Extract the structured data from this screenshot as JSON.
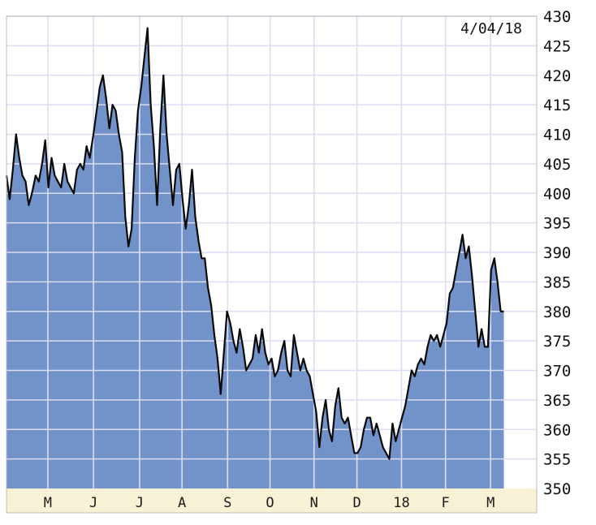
{
  "chart_data": {
    "type": "area",
    "date_label": "4/04/18",
    "ylim": [
      350,
      430
    ],
    "y_ticks": [
      350,
      355,
      360,
      365,
      370,
      375,
      380,
      385,
      390,
      395,
      400,
      405,
      410,
      415,
      420,
      425,
      430
    ],
    "x_ticks": [
      "M",
      "J",
      "J",
      "A",
      "S",
      "O",
      "N",
      "D",
      "18",
      "F",
      "M"
    ],
    "x_range": [
      0,
      1
    ],
    "x_tick_positions": [
      0.078,
      0.164,
      0.251,
      0.331,
      0.417,
      0.497,
      0.58,
      0.661,
      0.745,
      0.828,
      0.913
    ],
    "values": [
      [
        0.0,
        403
      ],
      [
        0.006,
        399
      ],
      [
        0.012,
        404
      ],
      [
        0.018,
        410
      ],
      [
        0.024,
        406
      ],
      [
        0.03,
        403
      ],
      [
        0.036,
        402
      ],
      [
        0.042,
        398
      ],
      [
        0.048,
        400
      ],
      [
        0.055,
        403
      ],
      [
        0.061,
        402
      ],
      [
        0.067,
        405
      ],
      [
        0.073,
        409
      ],
      [
        0.079,
        401
      ],
      [
        0.085,
        406
      ],
      [
        0.091,
        403
      ],
      [
        0.097,
        402
      ],
      [
        0.103,
        401
      ],
      [
        0.109,
        405
      ],
      [
        0.115,
        402
      ],
      [
        0.121,
        401
      ],
      [
        0.127,
        400
      ],
      [
        0.133,
        404
      ],
      [
        0.139,
        405
      ],
      [
        0.145,
        404
      ],
      [
        0.151,
        408
      ],
      [
        0.157,
        406
      ],
      [
        0.164,
        410
      ],
      [
        0.17,
        414
      ],
      [
        0.176,
        418
      ],
      [
        0.182,
        420
      ],
      [
        0.188,
        416
      ],
      [
        0.194,
        411
      ],
      [
        0.2,
        415
      ],
      [
        0.206,
        414
      ],
      [
        0.212,
        410
      ],
      [
        0.218,
        407
      ],
      [
        0.224,
        396
      ],
      [
        0.23,
        391
      ],
      [
        0.236,
        394
      ],
      [
        0.242,
        406
      ],
      [
        0.248,
        414
      ],
      [
        0.254,
        418
      ],
      [
        0.26,
        423
      ],
      [
        0.266,
        428
      ],
      [
        0.272,
        415
      ],
      [
        0.278,
        408
      ],
      [
        0.284,
        398
      ],
      [
        0.29,
        411
      ],
      [
        0.296,
        420
      ],
      [
        0.302,
        410
      ],
      [
        0.308,
        404
      ],
      [
        0.314,
        398
      ],
      [
        0.32,
        404
      ],
      [
        0.326,
        405
      ],
      [
        0.332,
        399
      ],
      [
        0.338,
        394
      ],
      [
        0.344,
        398
      ],
      [
        0.35,
        404
      ],
      [
        0.356,
        396
      ],
      [
        0.362,
        392
      ],
      [
        0.368,
        389
      ],
      [
        0.374,
        389
      ],
      [
        0.38,
        384
      ],
      [
        0.386,
        381
      ],
      [
        0.392,
        376
      ],
      [
        0.398,
        372
      ],
      [
        0.404,
        366
      ],
      [
        0.41,
        373
      ],
      [
        0.416,
        380
      ],
      [
        0.422,
        378
      ],
      [
        0.428,
        375
      ],
      [
        0.434,
        373
      ],
      [
        0.44,
        377
      ],
      [
        0.446,
        374
      ],
      [
        0.452,
        370
      ],
      [
        0.458,
        371
      ],
      [
        0.464,
        372
      ],
      [
        0.47,
        376
      ],
      [
        0.476,
        373
      ],
      [
        0.482,
        377
      ],
      [
        0.488,
        373
      ],
      [
        0.494,
        371
      ],
      [
        0.5,
        372
      ],
      [
        0.506,
        369
      ],
      [
        0.512,
        370
      ],
      [
        0.518,
        373
      ],
      [
        0.524,
        375
      ],
      [
        0.53,
        370
      ],
      [
        0.536,
        369
      ],
      [
        0.542,
        376
      ],
      [
        0.548,
        373
      ],
      [
        0.554,
        370
      ],
      [
        0.56,
        372
      ],
      [
        0.566,
        370
      ],
      [
        0.572,
        369
      ],
      [
        0.578,
        366
      ],
      [
        0.584,
        363
      ],
      [
        0.59,
        357
      ],
      [
        0.596,
        362
      ],
      [
        0.602,
        365
      ],
      [
        0.608,
        360
      ],
      [
        0.614,
        358
      ],
      [
        0.62,
        364
      ],
      [
        0.626,
        367
      ],
      [
        0.632,
        362
      ],
      [
        0.638,
        361
      ],
      [
        0.644,
        362
      ],
      [
        0.65,
        359
      ],
      [
        0.656,
        356
      ],
      [
        0.662,
        356
      ],
      [
        0.668,
        357
      ],
      [
        0.674,
        360
      ],
      [
        0.68,
        362
      ],
      [
        0.686,
        362
      ],
      [
        0.692,
        359
      ],
      [
        0.698,
        361
      ],
      [
        0.704,
        359
      ],
      [
        0.71,
        357
      ],
      [
        0.716,
        356
      ],
      [
        0.722,
        355
      ],
      [
        0.728,
        361
      ],
      [
        0.734,
        358
      ],
      [
        0.74,
        360
      ],
      [
        0.746,
        362
      ],
      [
        0.752,
        364
      ],
      [
        0.758,
        367
      ],
      [
        0.764,
        370
      ],
      [
        0.77,
        369
      ],
      [
        0.776,
        371
      ],
      [
        0.782,
        372
      ],
      [
        0.788,
        371
      ],
      [
        0.794,
        374
      ],
      [
        0.8,
        376
      ],
      [
        0.806,
        375
      ],
      [
        0.812,
        376
      ],
      [
        0.818,
        374
      ],
      [
        0.824,
        376
      ],
      [
        0.83,
        378
      ],
      [
        0.836,
        383
      ],
      [
        0.842,
        384
      ],
      [
        0.848,
        387
      ],
      [
        0.854,
        390
      ],
      [
        0.86,
        393
      ],
      [
        0.866,
        389
      ],
      [
        0.872,
        391
      ],
      [
        0.878,
        386
      ],
      [
        0.884,
        380
      ],
      [
        0.89,
        374
      ],
      [
        0.896,
        377
      ],
      [
        0.902,
        374
      ],
      [
        0.908,
        374
      ],
      [
        0.914,
        387
      ],
      [
        0.92,
        389
      ],
      [
        0.926,
        385
      ],
      [
        0.932,
        380
      ],
      [
        0.938,
        380
      ]
    ],
    "grid": true,
    "fill_color": "#7293c9",
    "line_color": "#0a0a0a",
    "plot_background": "#ffffff",
    "axis_background": "#f7f2d6"
  }
}
